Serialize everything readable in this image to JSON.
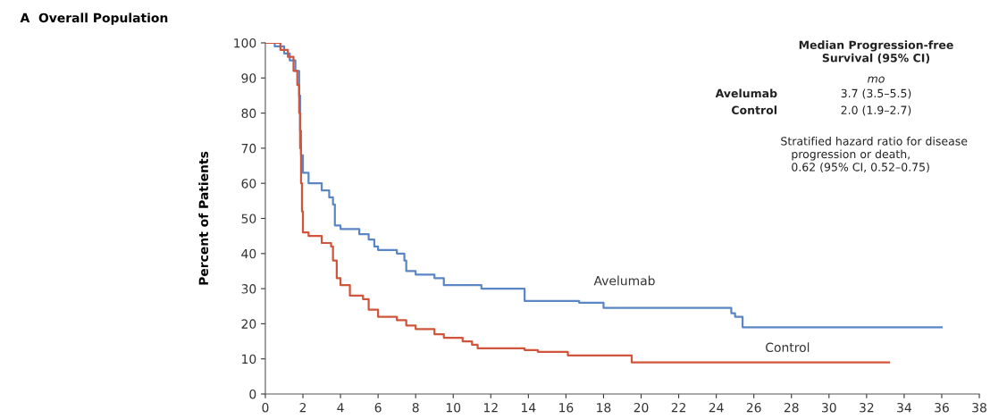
{
  "chart_data": {
    "type": "step",
    "title": "A  Overall Population",
    "ylabel": "Percent of Patients",
    "xlim": [
      0,
      38
    ],
    "xticks": [
      0,
      2,
      4,
      6,
      8,
      10,
      12,
      14,
      16,
      18,
      20,
      22,
      24,
      26,
      28,
      30,
      32,
      34,
      36,
      38
    ],
    "ylim": [
      0,
      100
    ],
    "yticks": [
      0,
      10,
      20,
      30,
      40,
      50,
      60,
      70,
      80,
      90,
      100
    ],
    "grid": false,
    "legend": false,
    "series": [
      {
        "name": "Avelumab",
        "color": "#5b86c5",
        "x": [
          0,
          0.5,
          1,
          1.3,
          1.6,
          1.8,
          1.85,
          1.9,
          2.0,
          2.3,
          3,
          3.4,
          3.6,
          3.7,
          4,
          5,
          5.5,
          5.8,
          6,
          7,
          7.4,
          7.5,
          8,
          9,
          9.5,
          11.5,
          13.8,
          16.7,
          18,
          24.8,
          25,
          25.4,
          36
        ],
        "values": [
          100,
          99,
          97,
          95,
          92,
          85,
          75,
          68,
          63,
          60,
          58,
          56,
          54,
          48,
          47,
          45.5,
          44,
          42,
          41,
          40,
          38,
          35,
          34,
          33,
          31,
          30,
          26.5,
          26,
          24.5,
          23,
          22,
          19,
          19
        ]
      },
      {
        "name": "Control",
        "color": "#d0553a",
        "x": [
          0,
          0.8,
          1.2,
          1.5,
          1.7,
          1.8,
          1.85,
          1.9,
          1.95,
          2.0,
          2.3,
          3,
          3.5,
          3.6,
          3.8,
          4,
          4.5,
          5.2,
          5.5,
          6,
          7,
          7.5,
          8,
          9,
          9.5,
          10.5,
          11,
          11.3,
          13.8,
          14.5,
          16.1,
          19.5,
          33.2
        ],
        "values": [
          100,
          98,
          96,
          92,
          88,
          80,
          70,
          60,
          52,
          46,
          45,
          43,
          42,
          38,
          33,
          31,
          28,
          27,
          24,
          22,
          21,
          19.5,
          18.5,
          17,
          16,
          15,
          14,
          13,
          12.5,
          12,
          11,
          9,
          9
        ]
      }
    ],
    "annotations": [
      "Median Progression-free\nSurvival (95% CI)",
      "mo",
      "Avelumab",
      "3.7 (3.5–5.5)",
      "Control",
      "2.0 (1.9–2.7)",
      "Stratified hazard ratio for disease\n   progression or death,\n   0.62 (95% CI, 0.52–0.75)"
    ]
  }
}
